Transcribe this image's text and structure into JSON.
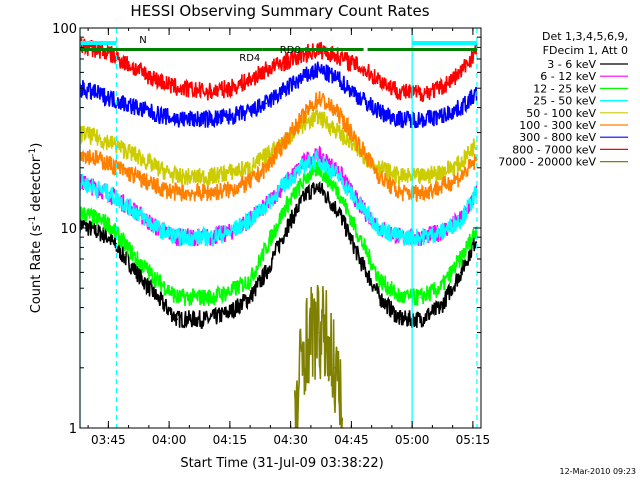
{
  "chart_data": {
    "type": "line",
    "title": "HESSI Observing Summary Count Rates",
    "xlabel": "Start Time (31-Jul-09 03:38:22)",
    "ylabel": "Count Rate (s",
    "ylabel_sup1": "-1",
    "ylabel_mid": " detector",
    "ylabel_sup2": "-1",
    "ylabel_end": ")",
    "yscale": "log",
    "ylim": [
      1,
      100
    ],
    "xlim": [
      "03:38",
      "05:17"
    ],
    "x_ticks": [
      "03:45",
      "04:00",
      "04:15",
      "04:30",
      "04:45",
      "05:00",
      "05:15"
    ],
    "y_ticks": [
      "1",
      "10",
      "100"
    ],
    "footer": "12-Mar-2010 09:23",
    "legend_header": [
      "Det 1,3,4,5,6,9,",
      "FDecim 1, Att 0"
    ],
    "legend_position": "right",
    "series": [
      {
        "name": "3 - 6 keV",
        "color": "#000000",
        "x": [
          "03:38",
          "03:45",
          "03:52",
          "03:57",
          "04:02",
          "04:10",
          "04:15",
          "04:20",
          "04:24",
          "04:29",
          "04:34",
          "04:37",
          "04:42",
          "04:47",
          "04:52",
          "04:57",
          "05:02",
          "05:07",
          "05:12",
          "05:16"
        ],
        "y": [
          10.5,
          9,
          6,
          4.5,
          3.5,
          3.5,
          3.8,
          4.5,
          6,
          10,
          15,
          16,
          12,
          7,
          4.5,
          3.5,
          3.5,
          4,
          6,
          9
        ]
      },
      {
        "name": "6 - 12 keV",
        "color": "#ff00ff",
        "x": [
          "03:38",
          "03:45",
          "03:52",
          "03:57",
          "04:02",
          "04:10",
          "04:15",
          "04:20",
          "04:24",
          "04:29",
          "04:34",
          "04:37",
          "04:42",
          "04:47",
          "04:52",
          "04:57",
          "05:02",
          "05:07",
          "05:12",
          "05:16"
        ],
        "y": [
          17,
          15,
          12,
          10,
          9,
          9,
          9.5,
          11,
          13,
          17,
          22,
          23,
          19,
          13,
          10,
          9,
          9,
          9.5,
          11,
          15
        ]
      },
      {
        "name": "12 - 25 keV",
        "color": "#00ff00",
        "x": [
          "03:38",
          "03:45",
          "03:52",
          "03:57",
          "04:02",
          "04:10",
          "04:15",
          "04:20",
          "04:24",
          "04:29",
          "04:34",
          "04:37",
          "04:42",
          "04:47",
          "04:52",
          "04:57",
          "05:02",
          "05:07",
          "05:12",
          "05:16"
        ],
        "y": [
          12,
          10.5,
          7,
          5.5,
          4.5,
          4.5,
          4.8,
          5.5,
          8,
          13,
          18,
          20,
          15,
          9,
          5.5,
          4.5,
          4.5,
          5,
          7,
          10
        ]
      },
      {
        "name": "25 - 50 keV",
        "color": "#00ffff",
        "x": [
          "03:38",
          "03:45",
          "03:52",
          "03:57",
          "04:02",
          "04:10",
          "04:15",
          "04:20",
          "04:24",
          "04:29",
          "04:34",
          "04:37",
          "04:42",
          "04:47",
          "04:52",
          "04:57",
          "05:02",
          "05:07",
          "05:12",
          "05:16"
        ],
        "y": [
          17,
          15,
          12,
          10,
          9,
          9,
          9.5,
          11,
          13,
          17,
          21,
          22,
          18,
          13,
          10,
          9,
          9,
          9.5,
          11,
          15
        ]
      },
      {
        "name": "50 - 100 keV",
        "color": "#cccc00",
        "x": [
          "03:38",
          "03:45",
          "03:52",
          "03:57",
          "04:02",
          "04:10",
          "04:15",
          "04:20",
          "04:24",
          "04:29",
          "04:34",
          "04:37",
          "04:42",
          "04:47",
          "04:52",
          "04:57",
          "05:02",
          "05:07",
          "05:12",
          "05:16"
        ],
        "y": [
          30,
          27,
          23,
          20,
          18,
          18,
          19,
          20,
          23,
          28,
          34,
          36,
          30,
          24,
          20,
          18,
          18,
          19,
          21,
          27
        ]
      },
      {
        "name": "100 - 300 keV",
        "color": "#ff8000",
        "x": [
          "03:38",
          "03:45",
          "03:52",
          "03:57",
          "04:02",
          "04:10",
          "04:15",
          "04:20",
          "04:24",
          "04:29",
          "04:34",
          "04:37",
          "04:42",
          "04:47",
          "04:52",
          "04:57",
          "05:02",
          "05:07",
          "05:12",
          "05:16"
        ],
        "y": [
          24,
          21,
          18,
          16,
          15,
          15,
          15.5,
          17,
          20,
          28,
          38,
          45,
          37,
          26,
          18,
          15,
          15,
          16,
          18,
          22
        ]
      },
      {
        "name": "300 - 800 keV",
        "color": "#0000ff",
        "x": [
          "03:38",
          "03:45",
          "03:52",
          "03:57",
          "04:02",
          "04:10",
          "04:15",
          "04:20",
          "04:24",
          "04:29",
          "04:34",
          "04:37",
          "04:42",
          "04:47",
          "04:52",
          "04:57",
          "05:02",
          "05:07",
          "05:12",
          "05:16"
        ],
        "y": [
          50,
          45,
          40,
          37,
          35,
          35,
          36,
          38,
          42,
          50,
          58,
          62,
          55,
          45,
          38,
          35,
          35,
          36,
          40,
          47
        ]
      },
      {
        "name": "800 - 7000 keV",
        "color": "#ff0000",
        "x": [
          "03:38",
          "03:45",
          "03:52",
          "03:57",
          "04:02",
          "04:10",
          "04:15",
          "04:20",
          "04:24",
          "04:29",
          "04:34",
          "04:37",
          "04:42",
          "04:47",
          "04:52",
          "04:57",
          "05:02",
          "05:07",
          "05:12",
          "05:16"
        ],
        "y": [
          82,
          75,
          62,
          55,
          50,
          48,
          50,
          55,
          62,
          68,
          75,
          78,
          72,
          64,
          55,
          48,
          47,
          50,
          60,
          78
        ]
      },
      {
        "name": "7000 - 20000 keV",
        "color": "#808000",
        "x": [
          "04:31",
          "04:33",
          "04:35",
          "04:37",
          "04:39",
          "04:41",
          "04:43"
        ],
        "y": [
          1,
          2.5,
          3,
          3,
          2.8,
          2,
          1
        ]
      }
    ],
    "bars": [
      {
        "label": "N",
        "color": "#00ffff",
        "x": [
          "03:38",
          "03:47"
        ]
      },
      {
        "label": "",
        "color": "#00ffff",
        "x": [
          "05:00",
          "05:16"
        ]
      },
      {
        "label": "RD0",
        "color": "#008000",
        "x": [
          "04:23",
          "04:48"
        ]
      },
      {
        "label": "RD4",
        "color": "#008000",
        "x": [
          "03:38",
          "04:23"
        ]
      },
      {
        "label": "",
        "color": "#008000",
        "x": [
          "04:49",
          "05:16"
        ]
      }
    ],
    "vlines": [
      {
        "x": "03:38",
        "color": "#00ffff",
        "style": "solid"
      },
      {
        "x": "03:47",
        "color": "#00ffff",
        "style": "dashed"
      },
      {
        "x": "05:00",
        "color": "#00ffff",
        "style": "solid"
      },
      {
        "x": "05:16",
        "color": "#00ffff",
        "style": "dashed"
      }
    ]
  }
}
